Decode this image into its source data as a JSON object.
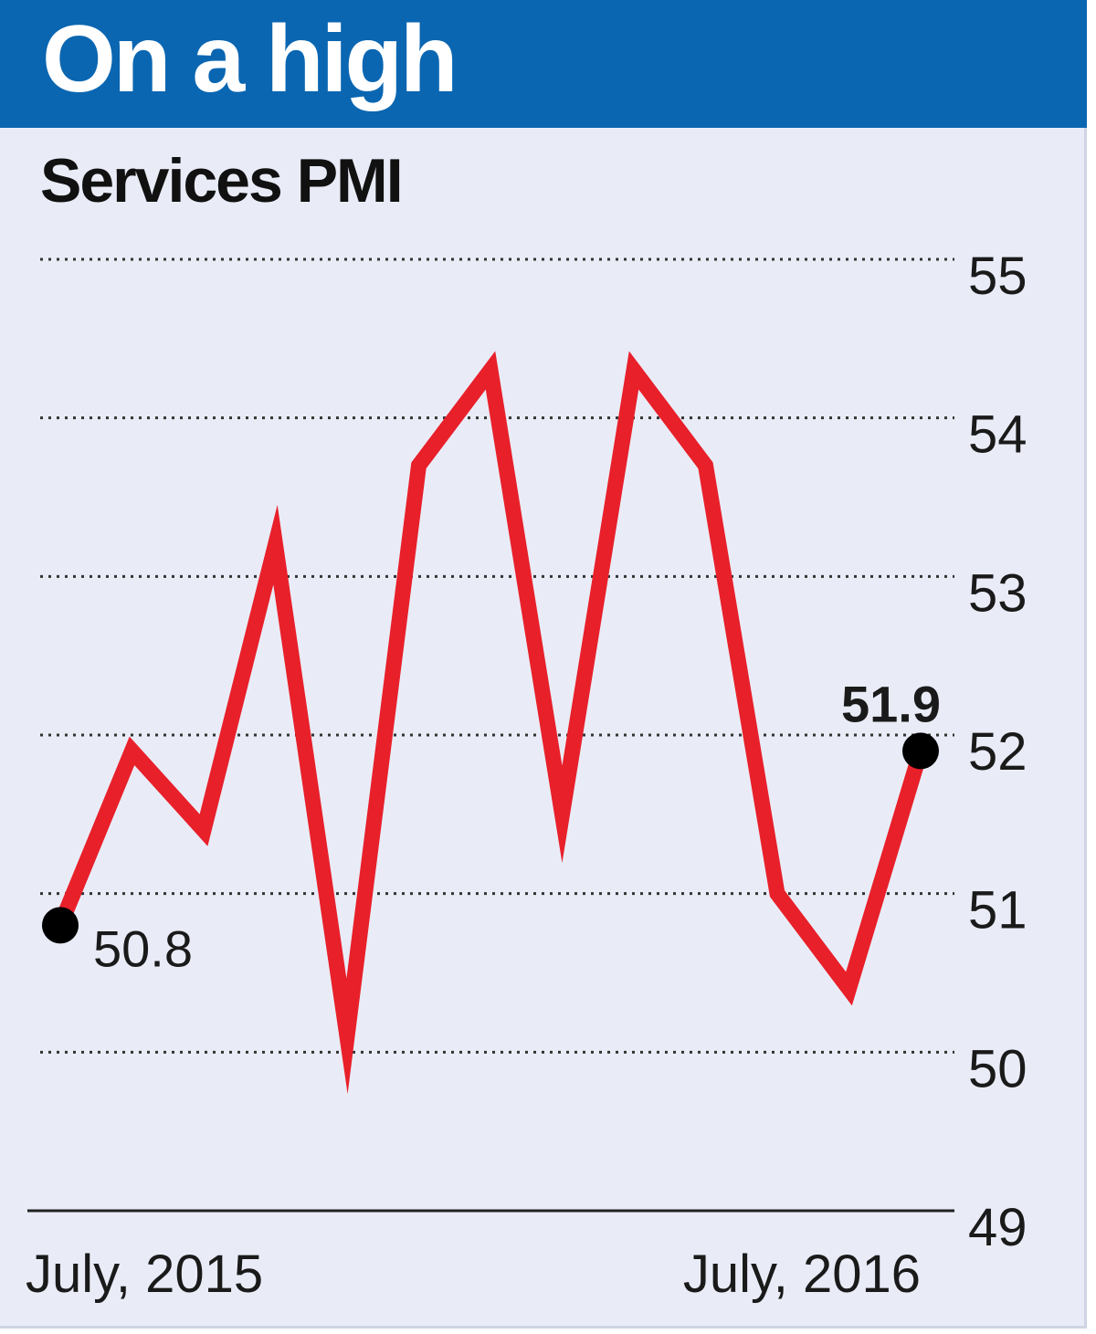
{
  "header": {
    "title": "On a high"
  },
  "chart_data": {
    "type": "line",
    "title": "On a high",
    "subtitle": "Services PMI",
    "x_labels": [
      "July, 2015",
      "July, 2016"
    ],
    "ylim": [
      49,
      55
    ],
    "y_ticks": [
      "55",
      "54",
      "53",
      "52",
      "51",
      "50",
      "49"
    ],
    "grid": "dotted horizontal",
    "series": [
      {
        "color": "#e8202a",
        "values": [
          50.8,
          51.9,
          51.4,
          53.2,
          50.1,
          53.7,
          54.3,
          51.5,
          54.3,
          53.7,
          51.0,
          50.4,
          51.9
        ]
      }
    ],
    "annotations": [
      {
        "index": 0,
        "text": "50.8"
      },
      {
        "index": 12,
        "text": "51.9"
      }
    ],
    "colors": {
      "header_band": "#0a66b1",
      "background": "#e9ecf7",
      "line": "#e8202a",
      "marker": "#000000"
    }
  }
}
